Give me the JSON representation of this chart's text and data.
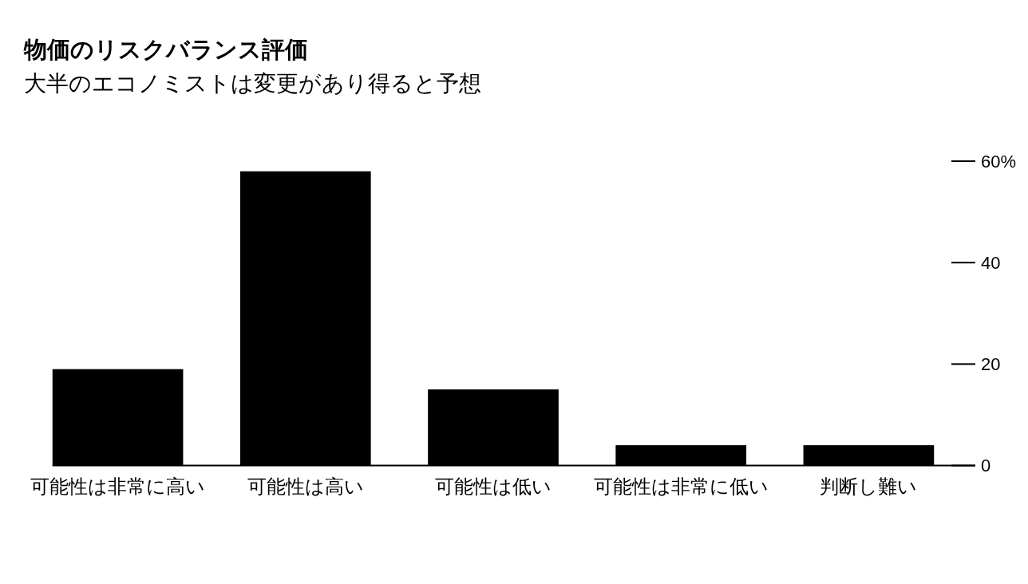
{
  "chart_data": {
    "type": "bar",
    "title": "物価のリスクバランス評価",
    "subtitle": "大半のエコノミストは変更があり得ると予想",
    "categories": [
      "可能性は非常に高い",
      "可能性は高い",
      "可能性は低い",
      "可能性は非常に低い",
      "判断し難い"
    ],
    "values": [
      19,
      58,
      15,
      4,
      4
    ],
    "color": "#000000",
    "ylim": [
      0,
      60
    ],
    "yticks": [
      0,
      20,
      40,
      {
        "value": 60,
        "label": "60%"
      }
    ]
  }
}
